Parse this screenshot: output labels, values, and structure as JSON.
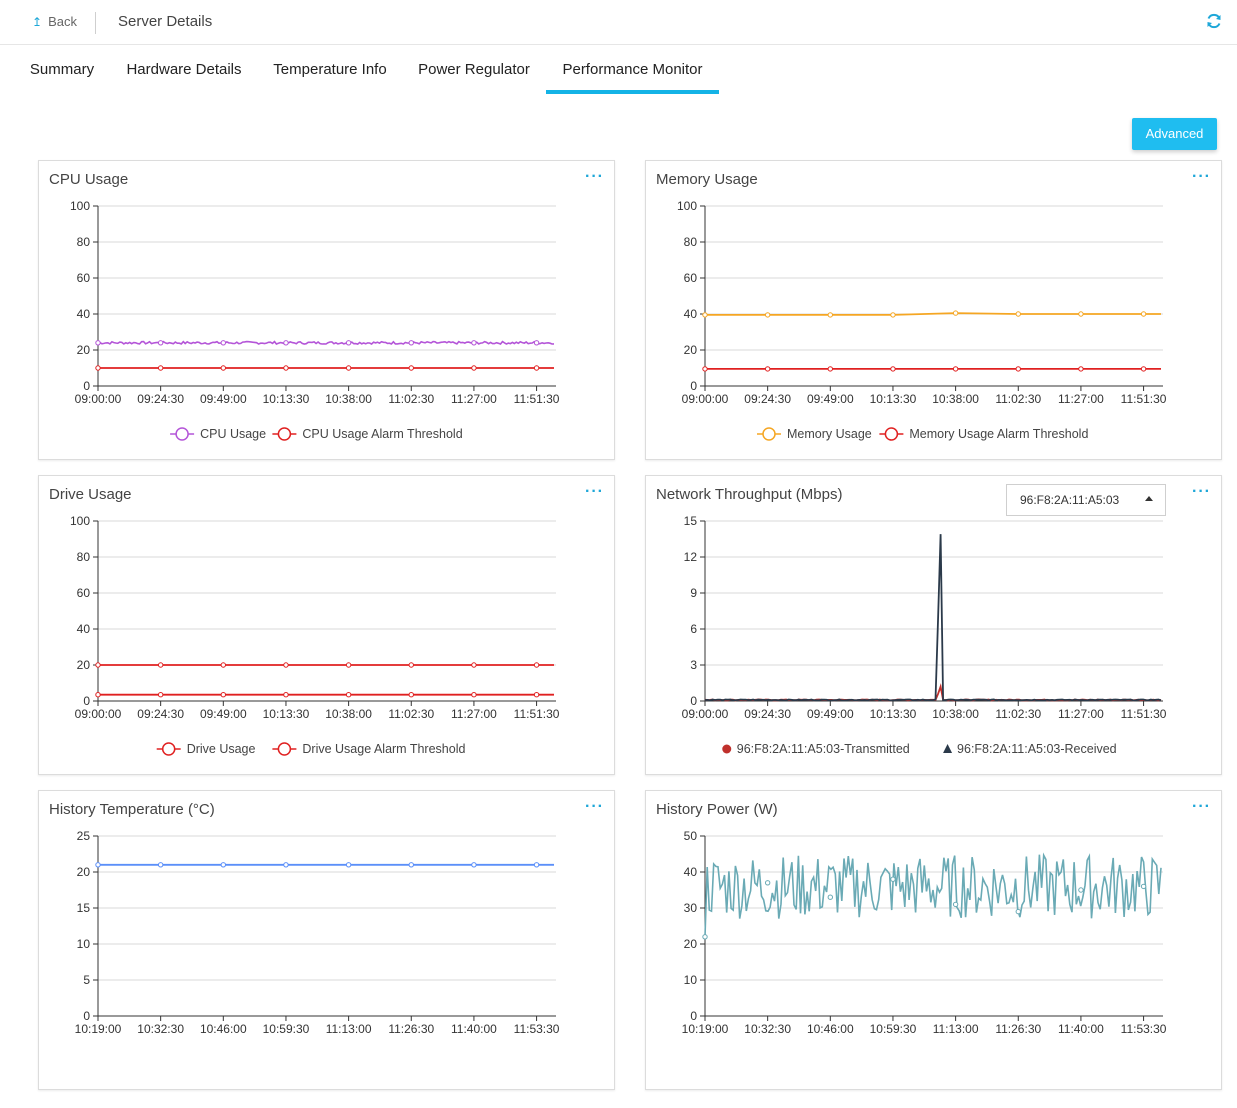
{
  "header": {
    "back_label": "Back",
    "title": "Server Details"
  },
  "tabs": [
    {
      "label": "Summary"
    },
    {
      "label": "Hardware Details"
    },
    {
      "label": "Temperature Info"
    },
    {
      "label": "Power Regulator"
    },
    {
      "label": "Performance Monitor",
      "active": true
    }
  ],
  "advanced_label": "Advanced",
  "colors": {
    "accent": "#14b3e6",
    "cpu": "#b455d8",
    "alarm": "#e02020",
    "memory": "#f5a623",
    "network_rx": "#2b3a4a",
    "temperature": "#5b8ff9",
    "power": "#6aaab5"
  },
  "icons": {
    "back": "back-arrow-icon",
    "refresh": "refresh-icon",
    "more": "more-icon",
    "dropdown": "caret-up-icon"
  },
  "charts": {
    "cpu": {
      "title": "CPU Usage"
    },
    "memory": {
      "title": "Memory Usage"
    },
    "drive": {
      "title": "Drive Usage"
    },
    "network": {
      "title": "Network Throughput (Mbps)",
      "selected_device": "96:F8:2A:11:A5:03"
    },
    "temperature": {
      "title": "History Temperature (°C)"
    },
    "power": {
      "title": "History Power (W)"
    }
  },
  "chart_data": [
    {
      "id": "cpu",
      "type": "line",
      "title": "CPU Usage",
      "x": [
        "09:00:00",
        "09:24:30",
        "09:49:00",
        "10:13:30",
        "10:38:00",
        "11:02:30",
        "11:27:00",
        "11:51:30"
      ],
      "ylim": [
        0,
        100
      ],
      "yticks": [
        0,
        20,
        40,
        60,
        80,
        100
      ],
      "legend_position": "bottom",
      "series": [
        {
          "name": "CPU Usage",
          "values": [
            24,
            24,
            24,
            24,
            24,
            24,
            24,
            24
          ],
          "color": "#b455d8",
          "noisy": true
        },
        {
          "name": "CPU Usage Alarm Threshold",
          "values": [
            10,
            10,
            10,
            10,
            10,
            10,
            10,
            10
          ],
          "color": "#e02020"
        }
      ]
    },
    {
      "id": "memory",
      "type": "line",
      "title": "Memory Usage",
      "x": [
        "09:00:00",
        "09:24:30",
        "09:49:00",
        "10:13:30",
        "10:38:00",
        "11:02:30",
        "11:27:00",
        "11:51:30"
      ],
      "ylim": [
        0,
        100
      ],
      "yticks": [
        0,
        20,
        40,
        60,
        80,
        100
      ],
      "legend_position": "bottom",
      "series": [
        {
          "name": "Memory Usage",
          "values": [
            39.5,
            39.5,
            39.5,
            39.5,
            40.5,
            40,
            40,
            40
          ],
          "color": "#f5a623"
        },
        {
          "name": "Memory Usage Alarm Threshold",
          "values": [
            9.5,
            9.5,
            9.5,
            9.5,
            9.5,
            9.5,
            9.5,
            9.5
          ],
          "color": "#e02020"
        }
      ]
    },
    {
      "id": "drive",
      "type": "line",
      "title": "Drive Usage",
      "x": [
        "09:00:00",
        "09:24:30",
        "09:49:00",
        "10:13:30",
        "10:38:00",
        "11:02:30",
        "11:27:00",
        "11:51:30"
      ],
      "ylim": [
        0,
        100
      ],
      "yticks": [
        0,
        20,
        40,
        60,
        80,
        100
      ],
      "legend_position": "bottom",
      "series": [
        {
          "name": "Drive Usage",
          "values": [
            3.5,
            3.5,
            3.5,
            3.5,
            3.5,
            3.5,
            3.5,
            3.5
          ],
          "color": "#e02020"
        },
        {
          "name": "Drive Usage Alarm Threshold",
          "values": [
            20,
            20,
            20,
            20,
            20,
            20,
            20,
            20
          ],
          "color": "#e02020"
        }
      ]
    },
    {
      "id": "network",
      "type": "line",
      "title": "Network Throughput (Mbps)",
      "x": [
        "09:00:00",
        "09:24:30",
        "09:49:00",
        "10:13:30",
        "10:38:00",
        "11:02:30",
        "11:27:00",
        "11:51:30"
      ],
      "ylim": [
        0,
        15
      ],
      "yticks": [
        0,
        3,
        6,
        9,
        12,
        15
      ],
      "legend_position": "bottom",
      "series": [
        {
          "name": "96:F8:2A:11:A5:03-Transmitted",
          "color": "#c0302c",
          "baseline": 0.05,
          "spike": {
            "x_index": 3.75,
            "value": 1.2
          }
        },
        {
          "name": "96:F8:2A:11:A5:03-Received",
          "color": "#2b3a4a",
          "baseline": 0.05,
          "spike": {
            "x_index": 3.75,
            "value": 13.9
          }
        }
      ]
    },
    {
      "id": "temperature",
      "type": "line",
      "title": "History Temperature (°C)",
      "x": [
        "10:19:00",
        "10:32:30",
        "10:46:00",
        "10:59:30",
        "11:13:00",
        "11:26:30",
        "11:40:00",
        "11:53:30"
      ],
      "ylim": [
        0,
        25
      ],
      "yticks": [
        0,
        5,
        10,
        15,
        20,
        25
      ],
      "legend_position": "none",
      "series": [
        {
          "name": "",
          "values": [
            21,
            21,
            21,
            21,
            21,
            21,
            21,
            21
          ],
          "color": "#5b8ff9"
        }
      ]
    },
    {
      "id": "power",
      "type": "line",
      "title": "History Power (W)",
      "x": [
        "10:19:00",
        "10:32:30",
        "10:46:00",
        "10:59:30",
        "11:13:00",
        "11:26:30",
        "11:40:00",
        "11:53:30"
      ],
      "ylim": [
        0,
        50
      ],
      "yticks": [
        0,
        10,
        20,
        30,
        40,
        50
      ],
      "legend_position": "none",
      "series": [
        {
          "name": "",
          "values": [
            22,
            37,
            33,
            38,
            31,
            29,
            35,
            36
          ],
          "color": "#6aaab5",
          "noisy": true,
          "range": [
            27,
            45
          ]
        }
      ]
    }
  ]
}
